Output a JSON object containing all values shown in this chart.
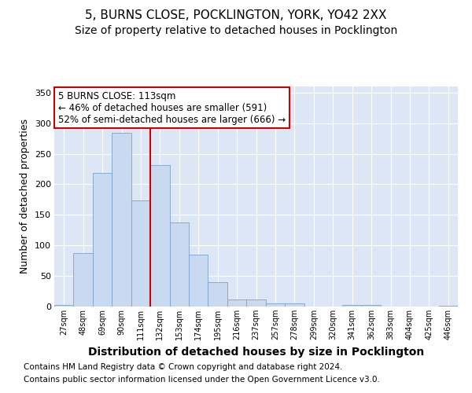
{
  "title1": "5, BURNS CLOSE, POCKLINGTON, YORK, YO42 2XX",
  "title2": "Size of property relative to detached houses in Pocklington",
  "xlabel": "Distribution of detached houses by size in Pocklington",
  "ylabel": "Number of detached properties",
  "footnote1": "Contains HM Land Registry data © Crown copyright and database right 2024.",
  "footnote2": "Contains public sector information licensed under the Open Government Licence v3.0.",
  "bin_labels": [
    "27sqm",
    "48sqm",
    "69sqm",
    "90sqm",
    "111sqm",
    "132sqm",
    "153sqm",
    "174sqm",
    "195sqm",
    "216sqm",
    "237sqm",
    "257sqm",
    "278sqm",
    "299sqm",
    "320sqm",
    "341sqm",
    "362sqm",
    "383sqm",
    "404sqm",
    "425sqm",
    "446sqm"
  ],
  "bar_values": [
    2,
    87,
    219,
    284,
    174,
    231,
    138,
    85,
    40,
    12,
    12,
    5,
    5,
    0,
    0,
    3,
    2,
    0,
    0,
    0,
    1
  ],
  "bar_color": "#c9d9f0",
  "bar_edge_color": "#7ba3cf",
  "vline_x": 4.5,
  "vline_color": "#cc0000",
  "annotation_text": "5 BURNS CLOSE: 113sqm\n← 46% of detached houses are smaller (591)\n52% of semi-detached houses are larger (666) →",
  "annotation_box_color": "#ffffff",
  "annotation_box_edge": "#cc0000",
  "ylim": [
    0,
    360
  ],
  "yticks": [
    0,
    50,
    100,
    150,
    200,
    250,
    300,
    350
  ],
  "fig_bg_color": "#ffffff",
  "plot_bg_color": "#dce6f5",
  "grid_color": "#ffffff",
  "title1_fontsize": 11,
  "title2_fontsize": 10,
  "xlabel_fontsize": 10,
  "ylabel_fontsize": 9,
  "footnote_fontsize": 7.5
}
